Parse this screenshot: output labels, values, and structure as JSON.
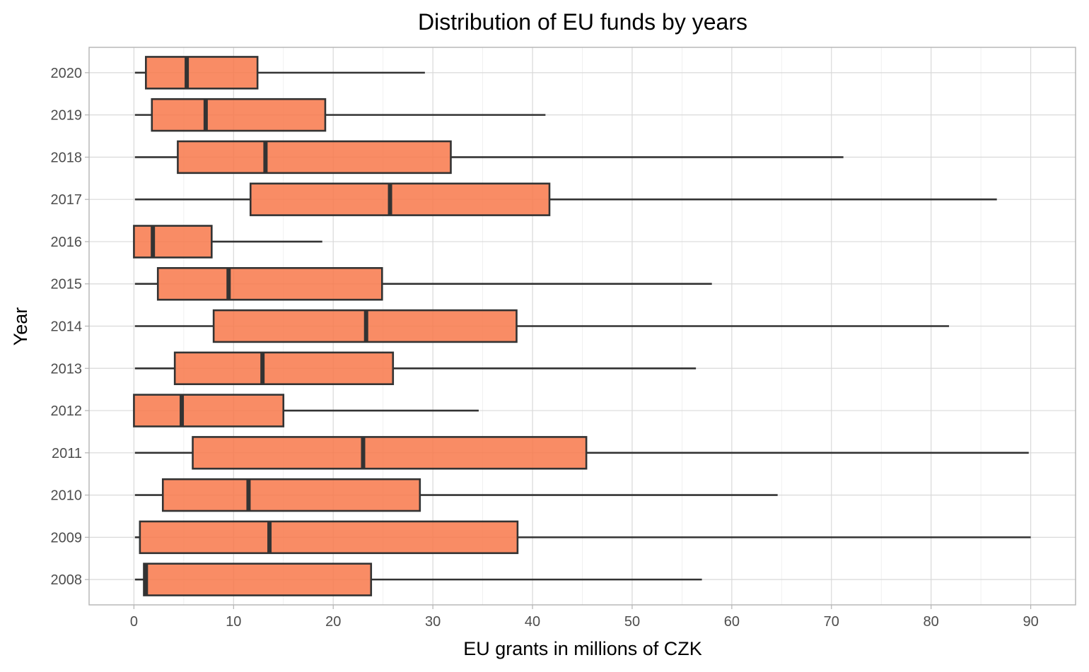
{
  "chart_data": {
    "type": "boxplot",
    "orientation": "horizontal",
    "title": "Distribution of EU funds by years",
    "xlabel": "EU grants in millions of CZK",
    "ylabel": "Year",
    "xlim": [
      -4.5,
      94.5
    ],
    "xticks": [
      "0",
      "10",
      "20",
      "30",
      "40",
      "50",
      "60",
      "70",
      "80",
      "90"
    ],
    "grid": true,
    "colors": {
      "box_fill": "#f8784a",
      "box_stroke": "#333333"
    },
    "categories": [
      "2008",
      "2009",
      "2010",
      "2011",
      "2012",
      "2013",
      "2014",
      "2015",
      "2016",
      "2017",
      "2018",
      "2019",
      "2020"
    ],
    "boxes": [
      {
        "year": "2008",
        "min": 0.1,
        "q1": 1.0,
        "median": 1.2,
        "q3": 23.8,
        "max": 57.0
      },
      {
        "year": "2009",
        "min": 0.1,
        "q1": 0.6,
        "median": 13.6,
        "q3": 38.5,
        "max": 90.0
      },
      {
        "year": "2010",
        "min": 0.1,
        "q1": 2.9,
        "median": 11.5,
        "q3": 28.7,
        "max": 64.6
      },
      {
        "year": "2011",
        "min": 0.1,
        "q1": 5.9,
        "median": 23.0,
        "q3": 45.4,
        "max": 89.8
      },
      {
        "year": "2012",
        "min": 0.0,
        "q1": 0.0,
        "median": 4.8,
        "q3": 15.0,
        "max": 34.6
      },
      {
        "year": "2013",
        "min": 0.1,
        "q1": 4.1,
        "median": 12.9,
        "q3": 26.0,
        "max": 56.4
      },
      {
        "year": "2014",
        "min": 0.1,
        "q1": 8.0,
        "median": 23.3,
        "q3": 38.4,
        "max": 81.8
      },
      {
        "year": "2015",
        "min": 0.1,
        "q1": 2.4,
        "median": 9.5,
        "q3": 24.9,
        "max": 58.0
      },
      {
        "year": "2016",
        "min": 0.0,
        "q1": 0.0,
        "median": 1.9,
        "q3": 7.8,
        "max": 18.9
      },
      {
        "year": "2017",
        "min": 0.1,
        "q1": 11.7,
        "median": 25.7,
        "q3": 41.7,
        "max": 86.6
      },
      {
        "year": "2018",
        "min": 0.1,
        "q1": 4.4,
        "median": 13.2,
        "q3": 31.8,
        "max": 71.2
      },
      {
        "year": "2019",
        "min": 0.1,
        "q1": 1.8,
        "median": 7.2,
        "q3": 19.2,
        "max": 41.3
      },
      {
        "year": "2020",
        "min": 0.1,
        "q1": 1.2,
        "median": 5.3,
        "q3": 12.4,
        "max": 29.2
      }
    ]
  }
}
